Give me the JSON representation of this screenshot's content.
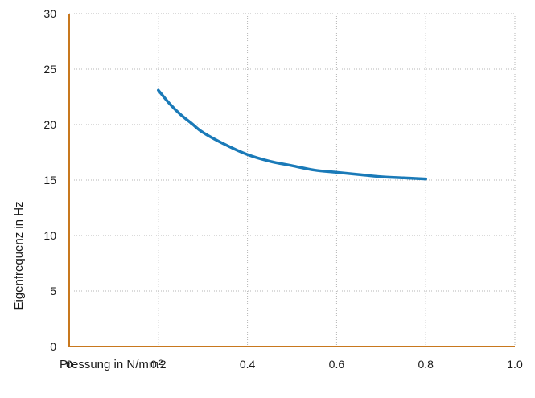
{
  "chart_data": {
    "type": "line",
    "title": "",
    "xlabel": "Pressung in N/mm²",
    "ylabel": "Eigenfrequenz in Hz",
    "xlim": [
      0,
      1.0
    ],
    "ylim": [
      0,
      30
    ],
    "xticks": [
      0,
      0.2,
      0.4,
      0.6,
      0.8,
      1.0
    ],
    "xtick_labels": [
      "0",
      "0.2",
      "0.4",
      "0.6",
      "0.8",
      "1.0"
    ],
    "yticks": [
      0,
      5,
      10,
      15,
      20,
      25,
      30
    ],
    "ytick_labels": [
      "0",
      "5",
      "10",
      "15",
      "20",
      "25",
      "30"
    ],
    "grid": true,
    "legend": "none",
    "colors": {
      "series": "#1a7ab8",
      "axis": "#c8781e",
      "grid": "#b5b5b5"
    },
    "series": [
      {
        "x": [
          0.2,
          0.225,
          0.25,
          0.275,
          0.3,
          0.35,
          0.4,
          0.45,
          0.5,
          0.55,
          0.6,
          0.65,
          0.7,
          0.75,
          0.8
        ],
        "values": [
          23.1,
          21.9,
          20.9,
          20.1,
          19.3,
          18.2,
          17.3,
          16.7,
          16.3,
          15.9,
          15.7,
          15.5,
          15.3,
          15.2,
          15.1
        ]
      }
    ]
  }
}
